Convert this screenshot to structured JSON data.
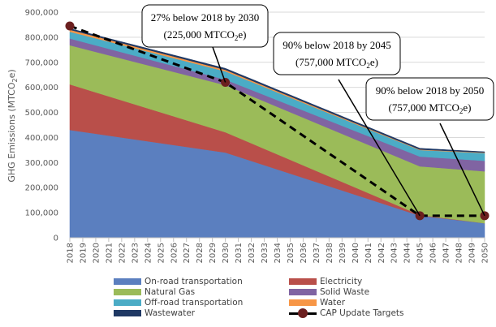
{
  "chart_data": {
    "type": "area",
    "stacked": true,
    "title": "",
    "xlabel": "",
    "ylabel": "GHG Emissions (MTCO₂e)",
    "ylim": [
      0,
      900000
    ],
    "yticks": [
      0,
      100000,
      200000,
      300000,
      400000,
      500000,
      600000,
      700000,
      800000,
      900000
    ],
    "ytick_labels": [
      "0",
      "100,000",
      "200,000",
      "300,000",
      "400,000",
      "500,000",
      "600,000",
      "700,000",
      "800,000",
      "900,000"
    ],
    "grid": true,
    "legend_position": "bottom",
    "x": [
      2018,
      2019,
      2020,
      2021,
      2022,
      2023,
      2024,
      2025,
      2026,
      2027,
      2028,
      2029,
      2030,
      2031,
      2032,
      2033,
      2034,
      2035,
      2036,
      2037,
      2038,
      2039,
      2040,
      2041,
      2042,
      2043,
      2044,
      2045,
      2046,
      2047,
      2048,
      2049,
      2050
    ],
    "series": [
      {
        "name": "On-road transportation",
        "color": "#5b7fbf",
        "values": [
          430000,
          422500,
          415000,
          407500,
          400000,
          392500,
          385000,
          377500,
          370000,
          362500,
          355000,
          347500,
          340000,
          323200,
          306400,
          289600,
          272800,
          256000,
          239200,
          222400,
          205600,
          188800,
          172000,
          155200,
          138400,
          121600,
          104800,
          88000,
          82000,
          76000,
          70000,
          64000,
          58000
        ]
      },
      {
        "name": "Electricity",
        "color": "#b94f4a",
        "values": [
          182000,
          173600,
          165100,
          156700,
          148300,
          139900,
          131500,
          123100,
          114700,
          106300,
          97800,
          89400,
          81000,
          75800,
          70600,
          65400,
          60200,
          55000,
          49800,
          44600,
          39400,
          34200,
          29000,
          23800,
          18600,
          13400,
          8200,
          3000,
          2400,
          1800,
          1200,
          600,
          0
        ]
      },
      {
        "name": "Natural Gas",
        "color": "#9bbb59",
        "values": [
          156000,
          158700,
          161300,
          164000,
          166700,
          169300,
          172000,
          174700,
          177300,
          180000,
          182700,
          185300,
          188000,
          188400,
          188800,
          189200,
          189600,
          190000,
          190400,
          190800,
          191200,
          191600,
          192000,
          192400,
          192800,
          193200,
          193600,
          194000,
          196600,
          199200,
          201800,
          204400,
          207000
        ]
      },
      {
        "name": "Solid Waste",
        "color": "#8064a2",
        "values": [
          27000,
          26600,
          26200,
          25800,
          25300,
          24900,
          24500,
          24100,
          23700,
          23300,
          22800,
          22400,
          22000,
          23100,
          24300,
          25400,
          26500,
          27700,
          28800,
          29900,
          31100,
          32200,
          33300,
          34500,
          35600,
          36700,
          37900,
          39000,
          39600,
          40200,
          40800,
          41400,
          42000
        ]
      },
      {
        "name": "Off-road transportation",
        "color": "#4bacc6",
        "values": [
          27000,
          27500,
          28000,
          28500,
          29000,
          29500,
          30000,
          30500,
          31000,
          31500,
          32000,
          32500,
          33000,
          32500,
          32100,
          31600,
          31100,
          30700,
          30200,
          29700,
          29300,
          28800,
          28300,
          27900,
          27400,
          26900,
          26500,
          26000,
          27000,
          28000,
          29000,
          30000,
          31000
        ]
      },
      {
        "name": "Water",
        "color": "#f79646",
        "values": [
          8000,
          7800,
          7700,
          7500,
          7300,
          7200,
          7000,
          6800,
          6700,
          6500,
          6300,
          6200,
          6000,
          5700,
          5500,
          5200,
          4900,
          4700,
          4400,
          4100,
          3900,
          3600,
          3300,
          3100,
          2800,
          2500,
          2300,
          2000,
          2000,
          2000,
          2000,
          2000,
          2000
        ]
      },
      {
        "name": "Wastewater",
        "color": "#1f3864",
        "values": [
          5000,
          5100,
          5200,
          5300,
          5300,
          5400,
          5500,
          5600,
          5700,
          5800,
          5800,
          5900,
          6000,
          5900,
          5900,
          5800,
          5700,
          5700,
          5600,
          5500,
          5500,
          5400,
          5300,
          5300,
          5200,
          5100,
          5100,
          5000,
          4600,
          4200,
          3800,
          3400,
          3000
        ]
      }
    ],
    "targets": {
      "name": "CAP Update Targets",
      "color": "#000000",
      "marker_color": "#6b1f1f",
      "points": [
        {
          "x": 2018,
          "y": 845000
        },
        {
          "x": 2030,
          "y": 620000
        },
        {
          "x": 2045,
          "y": 88000
        },
        {
          "x": 2050,
          "y": 88000
        }
      ]
    },
    "annotations": [
      {
        "line1": "27% below 2018 by 2030",
        "line2_pre": "(225,000 MTCO",
        "line2_sub": "2",
        "line2_post": "e)",
        "target_x": 2030
      },
      {
        "line1": "90% below 2018 by 2045",
        "line2_pre": "(757,000 MTCO",
        "line2_sub": "2",
        "line2_post": "e)",
        "target_x": 2045
      },
      {
        "line1": "90% below 2018 by 2050",
        "line2_pre": "(757,000 MTCO",
        "line2_sub": "2",
        "line2_post": "e)",
        "target_x": 2050
      }
    ]
  },
  "legend": [
    {
      "label": "On-road transportation",
      "color": "#5b7fbf"
    },
    {
      "label": "Electricity",
      "color": "#b94f4a"
    },
    {
      "label": "Natural Gas",
      "color": "#9bbb59"
    },
    {
      "label": "Solid Waste",
      "color": "#8064a2"
    },
    {
      "label": "Off-road transportation",
      "color": "#4bacc6"
    },
    {
      "label": "Water",
      "color": "#f79646"
    },
    {
      "label": "Wastewater",
      "color": "#1f3864"
    },
    {
      "label": "CAP Update Targets",
      "color": "#000000"
    }
  ]
}
